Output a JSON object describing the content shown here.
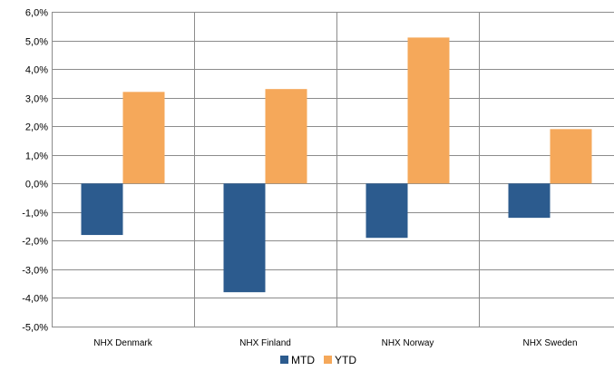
{
  "chart_data": {
    "type": "bar",
    "categories": [
      "NHX Denmark",
      "NHX Finland",
      "NHX Norway",
      "NHX Sweden"
    ],
    "series": [
      {
        "name": "MTD",
        "values": [
          -1.8,
          -3.8,
          -1.9,
          -1.2
        ],
        "color": "#2c5b8e"
      },
      {
        "name": "YTD",
        "values": [
          3.2,
          3.3,
          5.1,
          1.9
        ],
        "color": "#f5a85a"
      }
    ],
    "ylim": [
      -5.0,
      6.0
    ],
    "ystep": 1.0,
    "ytick_labels": [
      "-5,0%",
      "-4,0%",
      "-3,0%",
      "-2,0%",
      "-1,0%",
      "0,0%",
      "1,0%",
      "2,0%",
      "3,0%",
      "4,0%",
      "5,0%",
      "6,0%"
    ],
    "grid": {
      "horizontal": true,
      "vertical_category_separators": true
    },
    "legend": {
      "position": "bottom",
      "entries": [
        "MTD",
        "YTD"
      ]
    },
    "title": "",
    "xlabel": "",
    "ylabel": ""
  }
}
